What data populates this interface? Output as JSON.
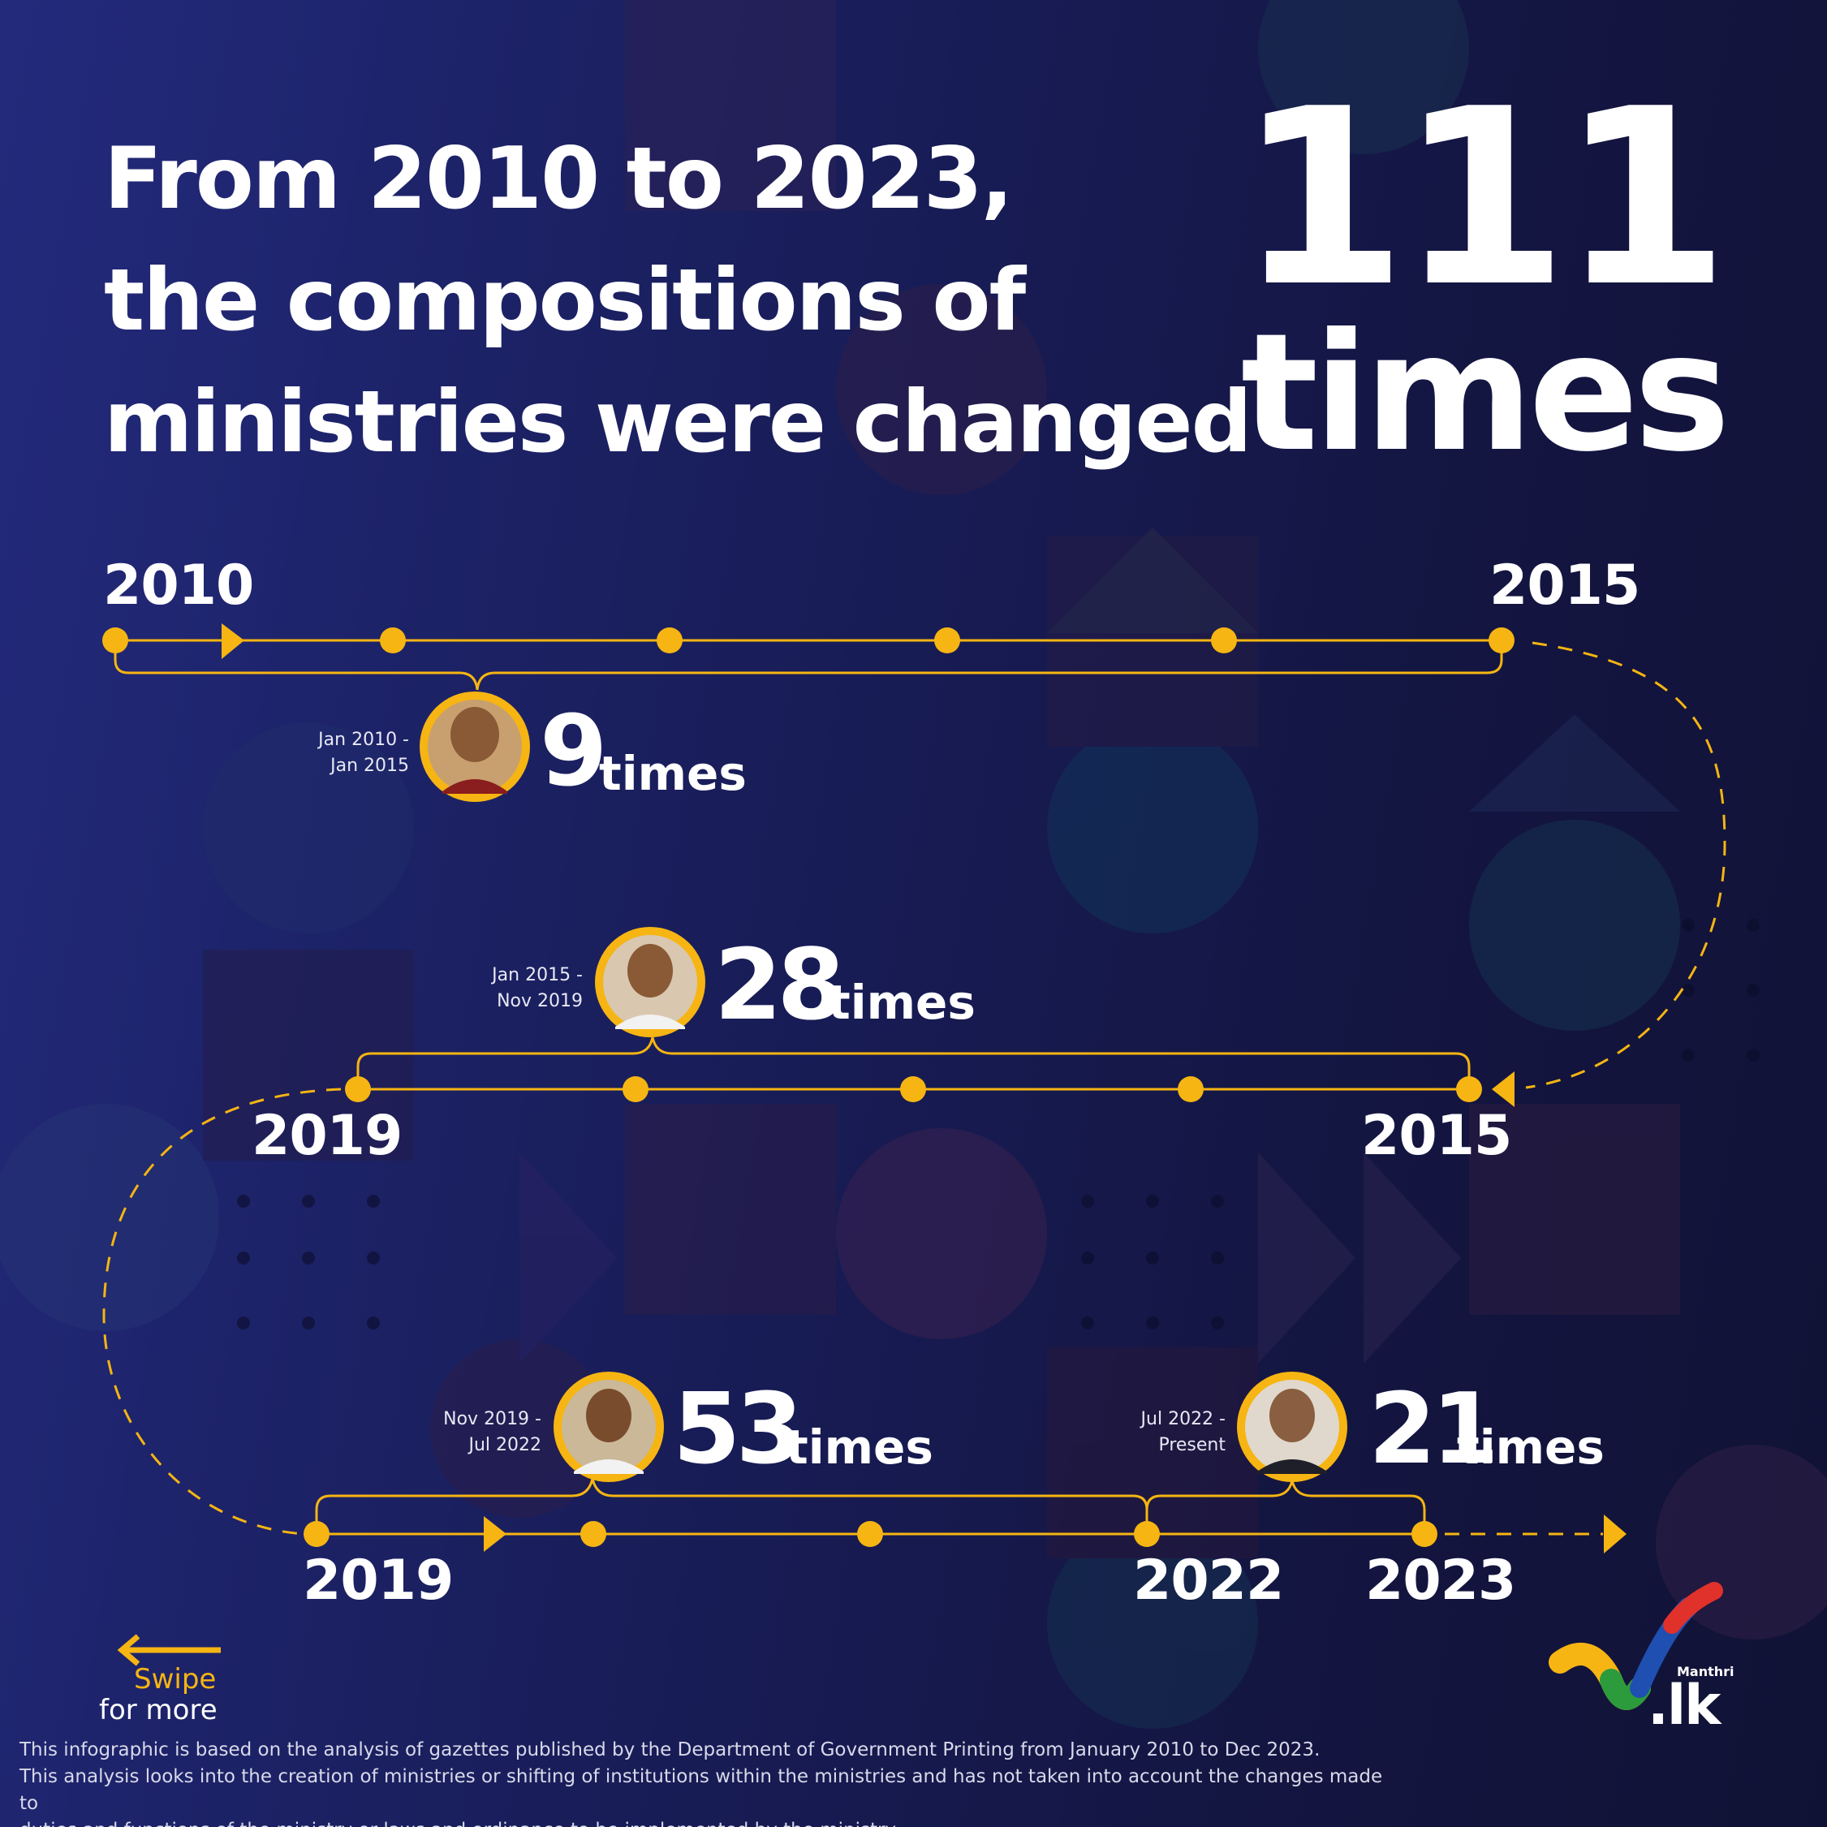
{
  "headline": {
    "line1": "From 2010 to 2023,",
    "line2": "the compositions of",
    "line3": "ministries were changed",
    "total_number": "111",
    "total_unit": "times"
  },
  "timeline": {
    "row1": {
      "start_year": "2010",
      "end_year": "2015"
    },
    "row2": {
      "start_year": "2019",
      "end_year": "2015"
    },
    "row3": {
      "start_year": "2019",
      "mid_year": "2022",
      "end_year": "2023"
    }
  },
  "presidents": [
    {
      "range_line1": "Jan 2010 -",
      "range_line2": "Jan 2015",
      "count": "9",
      "unit": "times"
    },
    {
      "range_line1": "Jan 2015 -",
      "range_line2": "Nov 2019",
      "count": "28",
      "unit": "times"
    },
    {
      "range_line1": "Nov 2019 -",
      "range_line2": "Jul 2022",
      "count": "53",
      "unit": "times"
    },
    {
      "range_line1": "Jul 2022 -",
      "range_line2": "Present",
      "count": "21",
      "unit": "times"
    }
  ],
  "swipe": {
    "line1": "Swipe",
    "line2": "for more"
  },
  "footnote": {
    "line1": "This infographic is based on the analysis of gazettes published by the Department of Government Printing from January 2010 to Dec 2023.",
    "line2": "This analysis looks into the creation of ministries or shifting of institutions within the ministries and has not taken into account the changes made to",
    "line3": "duties and functions of the ministry or laws and ordinance to be implemented by the ministry."
  },
  "logo": {
    "small_text": "Manthri",
    "domain_text": ".lk"
  },
  "colors": {
    "accent": "#f6b512",
    "background": "#1a1f5e",
    "text": "#ffffff"
  }
}
